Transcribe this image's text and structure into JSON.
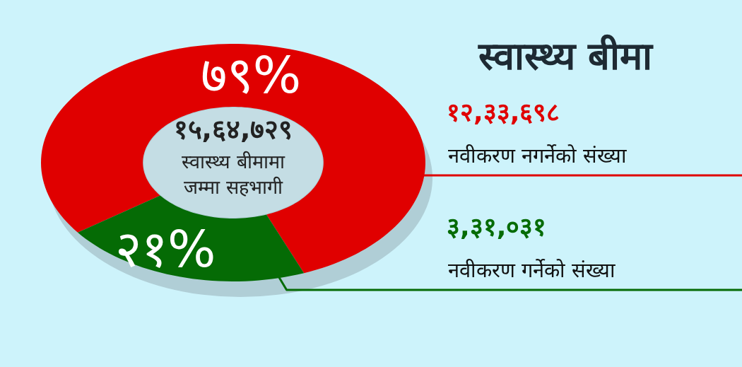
{
  "chart_data": {
    "type": "donut",
    "title": "स्वास्थ्य बीमा",
    "categories": [
      "नवीकरण नगर्नेको संख्या",
      "नवीकरण गर्नेको संख्या"
    ],
    "values": [
      79,
      21
    ],
    "colors": [
      "#e00000",
      "#056b05"
    ],
    "value_labels": [
      "७९%",
      "२१%"
    ],
    "annotations": [
      "१५,६४,७२९",
      "स्वास्थ्य बीमामा जम्मा सहभागी",
      "१२,३३,६९८",
      "३,३१,०३१"
    ]
  }
}
